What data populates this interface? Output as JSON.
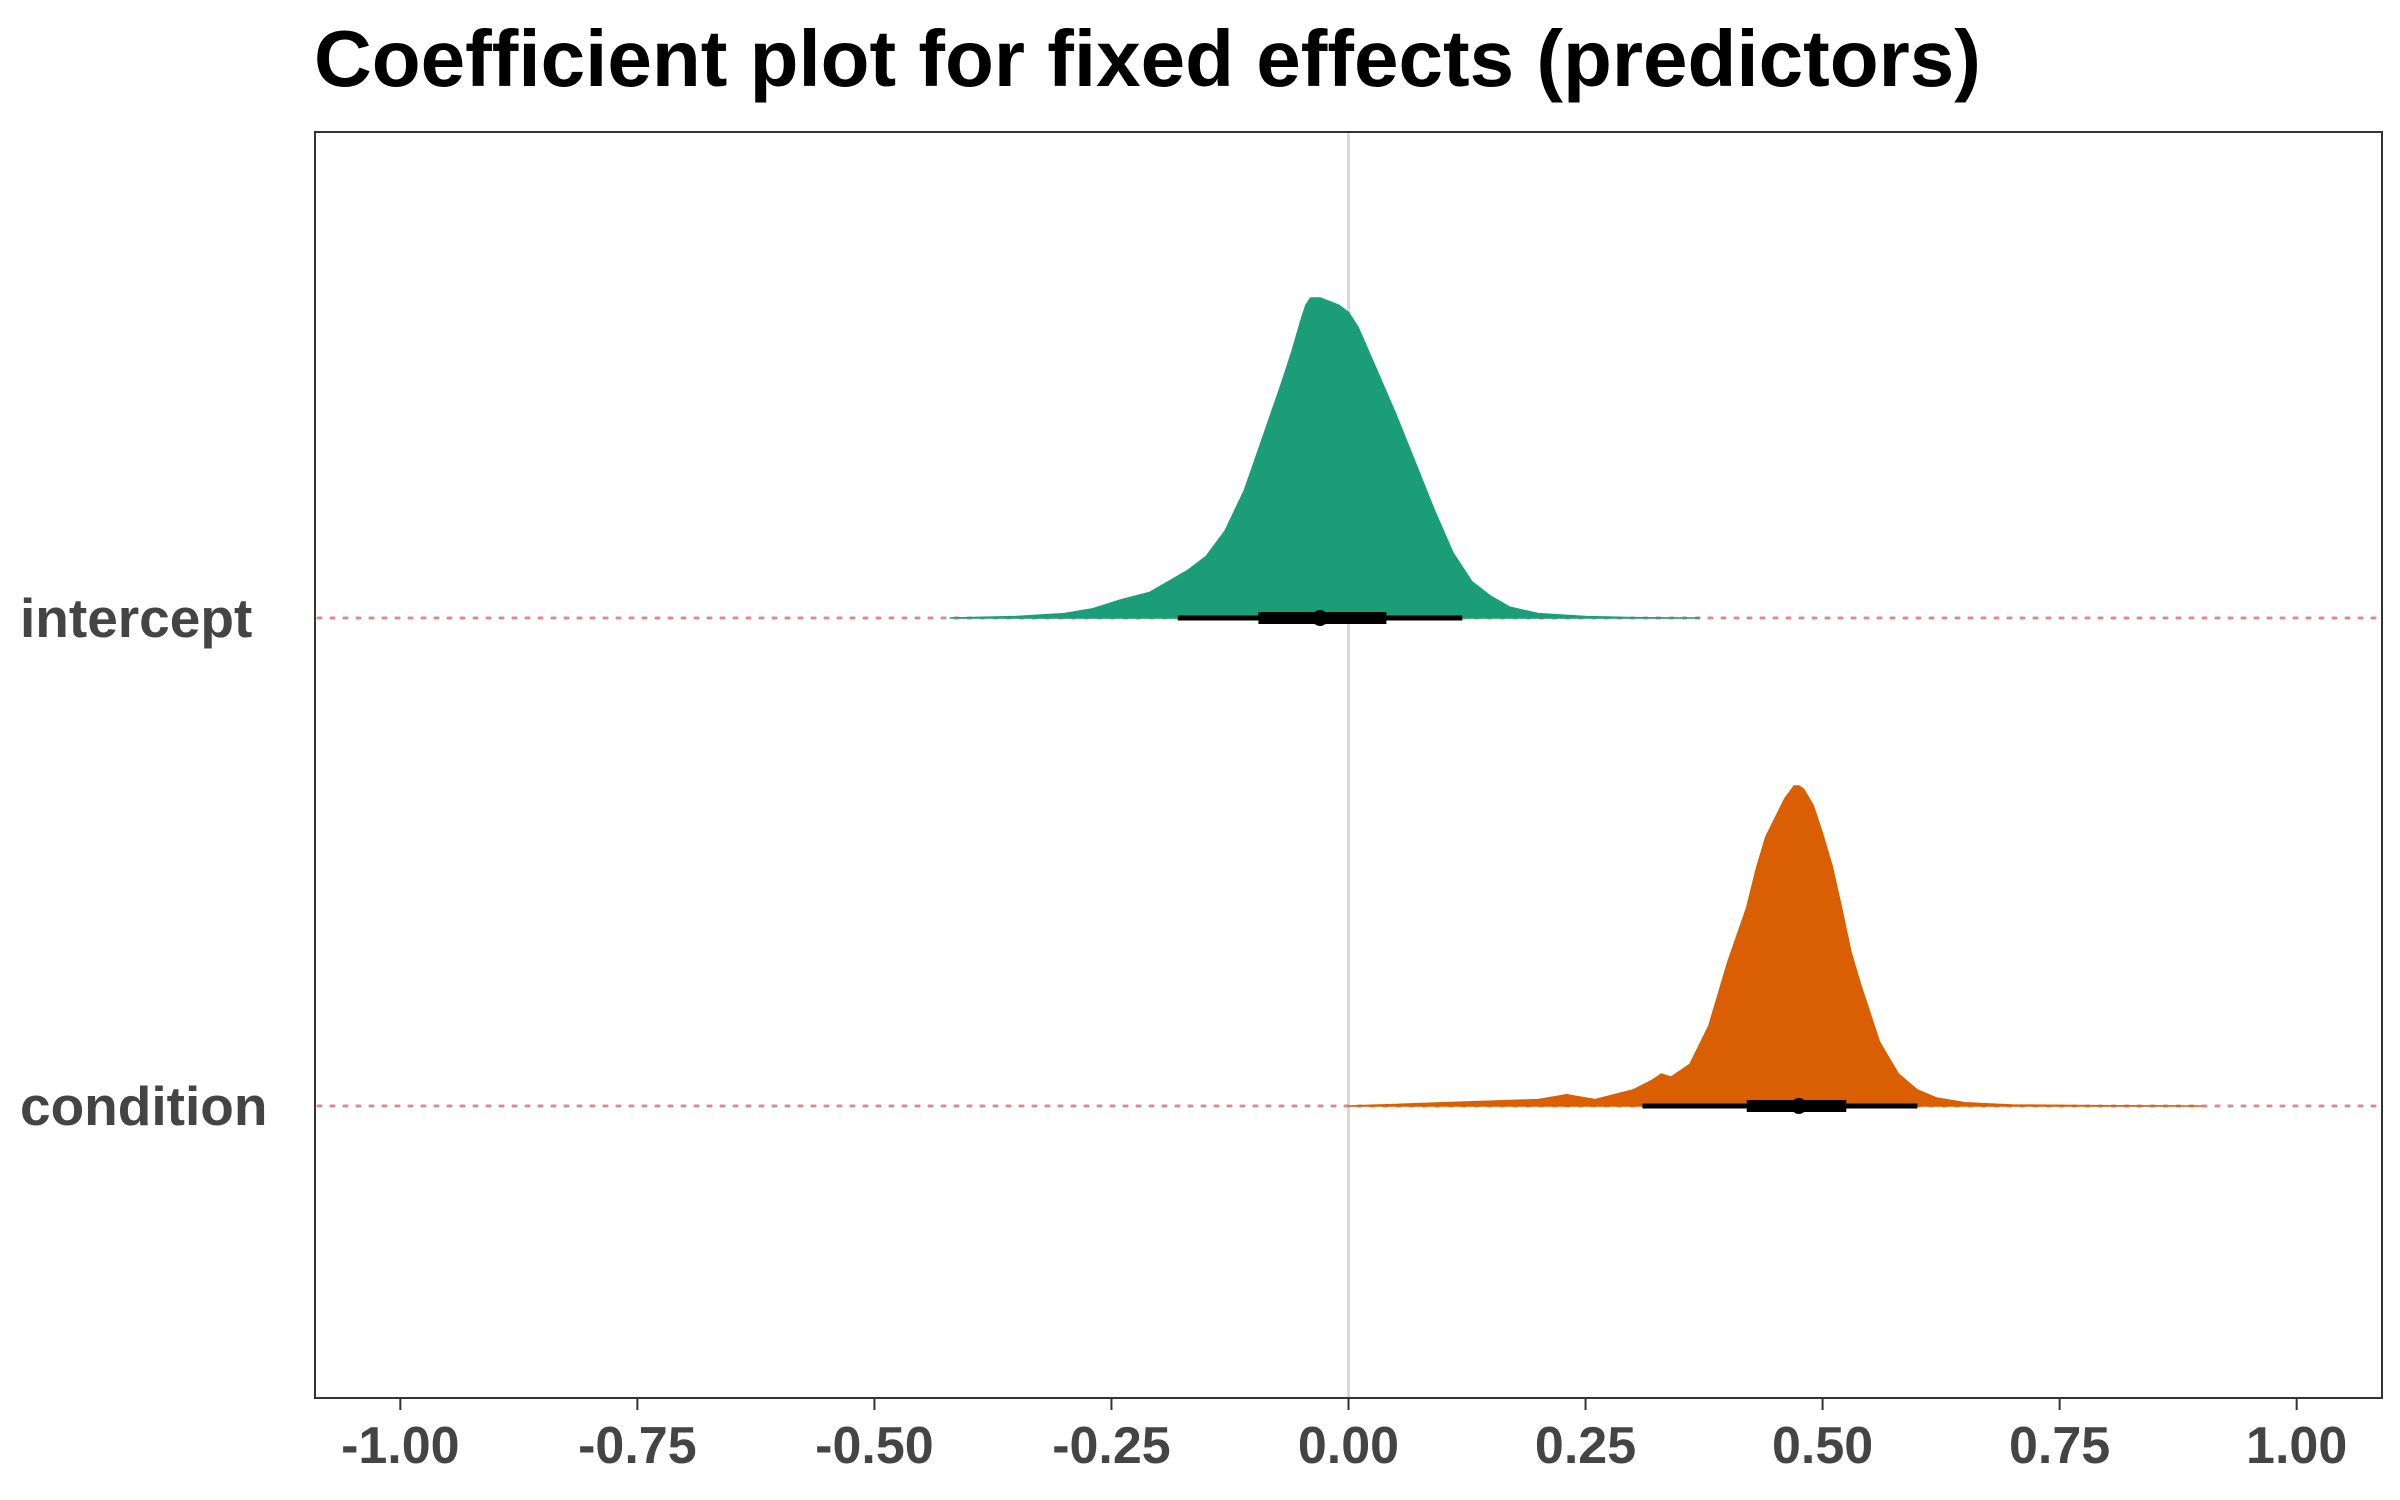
{
  "chart_data": {
    "type": "density-interval",
    "title": "Coefficient plot for fixed effects (predictors)",
    "xlabel": "",
    "ylabel": "",
    "xlim": [
      -1.09,
      1.09
    ],
    "x_ticks": [
      -1.0,
      -0.75,
      -0.5,
      -0.25,
      0.0,
      0.25,
      0.5,
      0.75,
      1.0
    ],
    "x_tick_labels": [
      "-1.00",
      "-0.75",
      "-0.50",
      "-0.25",
      "0.00",
      "0.25",
      "0.50",
      "0.75",
      "1.00"
    ],
    "reference_line_x": 0.0,
    "grid": false,
    "series": [
      {
        "name": "intercept",
        "color": "#1b9e77",
        "point_estimate": -0.03,
        "interval_inner": [
          -0.095,
          0.04
        ],
        "interval_outer": [
          -0.18,
          0.12
        ],
        "density": {
          "x": [
            -0.42,
            -0.35,
            -0.3,
            -0.27,
            -0.24,
            -0.21,
            -0.19,
            -0.17,
            -0.15,
            -0.13,
            -0.11,
            -0.09,
            -0.07,
            -0.06,
            -0.05,
            -0.045,
            -0.04,
            -0.03,
            -0.02,
            -0.01,
            0.0,
            0.01,
            0.02,
            0.035,
            0.05,
            0.07,
            0.09,
            0.11,
            0.13,
            0.15,
            0.17,
            0.2,
            0.25,
            0.3,
            0.37
          ],
          "y": [
            0.0,
            0.004,
            0.012,
            0.025,
            0.05,
            0.07,
            0.1,
            0.13,
            0.17,
            0.24,
            0.35,
            0.5,
            0.65,
            0.73,
            0.82,
            0.86,
            0.88,
            0.88,
            0.87,
            0.86,
            0.84,
            0.8,
            0.74,
            0.65,
            0.56,
            0.43,
            0.3,
            0.18,
            0.1,
            0.06,
            0.03,
            0.012,
            0.004,
            0.001,
            0.0
          ]
        }
      },
      {
        "name": "condition",
        "color": "#d95f02",
        "point_estimate": 0.475,
        "interval_inner": [
          0.42,
          0.525
        ],
        "interval_outer": [
          0.31,
          0.6
        ],
        "density": {
          "x": [
            0.0,
            0.1,
            0.2,
            0.23,
            0.26,
            0.3,
            0.32,
            0.33,
            0.34,
            0.36,
            0.38,
            0.4,
            0.42,
            0.43,
            0.44,
            0.45,
            0.46,
            0.47,
            0.475,
            0.48,
            0.49,
            0.5,
            0.51,
            0.52,
            0.53,
            0.54,
            0.56,
            0.58,
            0.6,
            0.62,
            0.65,
            0.7,
            0.8,
            0.9
          ],
          "y": [
            0.0,
            0.01,
            0.02,
            0.035,
            0.02,
            0.05,
            0.08,
            0.1,
            0.09,
            0.13,
            0.25,
            0.45,
            0.62,
            0.74,
            0.84,
            0.9,
            0.96,
            1.0,
            1.0,
            0.99,
            0.94,
            0.85,
            0.75,
            0.62,
            0.48,
            0.38,
            0.2,
            0.1,
            0.05,
            0.025,
            0.01,
            0.003,
            0.0005,
            0.0
          ]
        }
      }
    ]
  }
}
